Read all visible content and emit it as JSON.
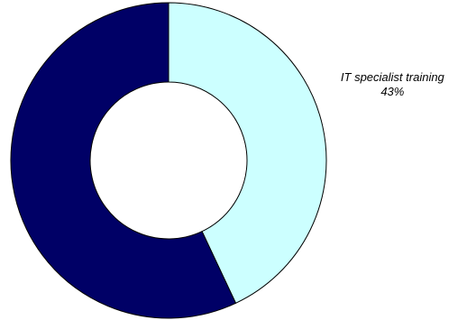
{
  "chart_data": {
    "type": "pie",
    "subtype": "donut",
    "title": "",
    "slices": [
      {
        "label": "IT specialist training",
        "value": 43,
        "value_label": "43%",
        "color": "#CCFFFF",
        "show_label": true
      },
      {
        "label": "",
        "value": 57,
        "value_label": "",
        "color": "#000066",
        "show_label": false
      }
    ],
    "start_angle_deg": 0,
    "direction": "clockwise",
    "outline_color": "#000000",
    "legend": "none"
  }
}
